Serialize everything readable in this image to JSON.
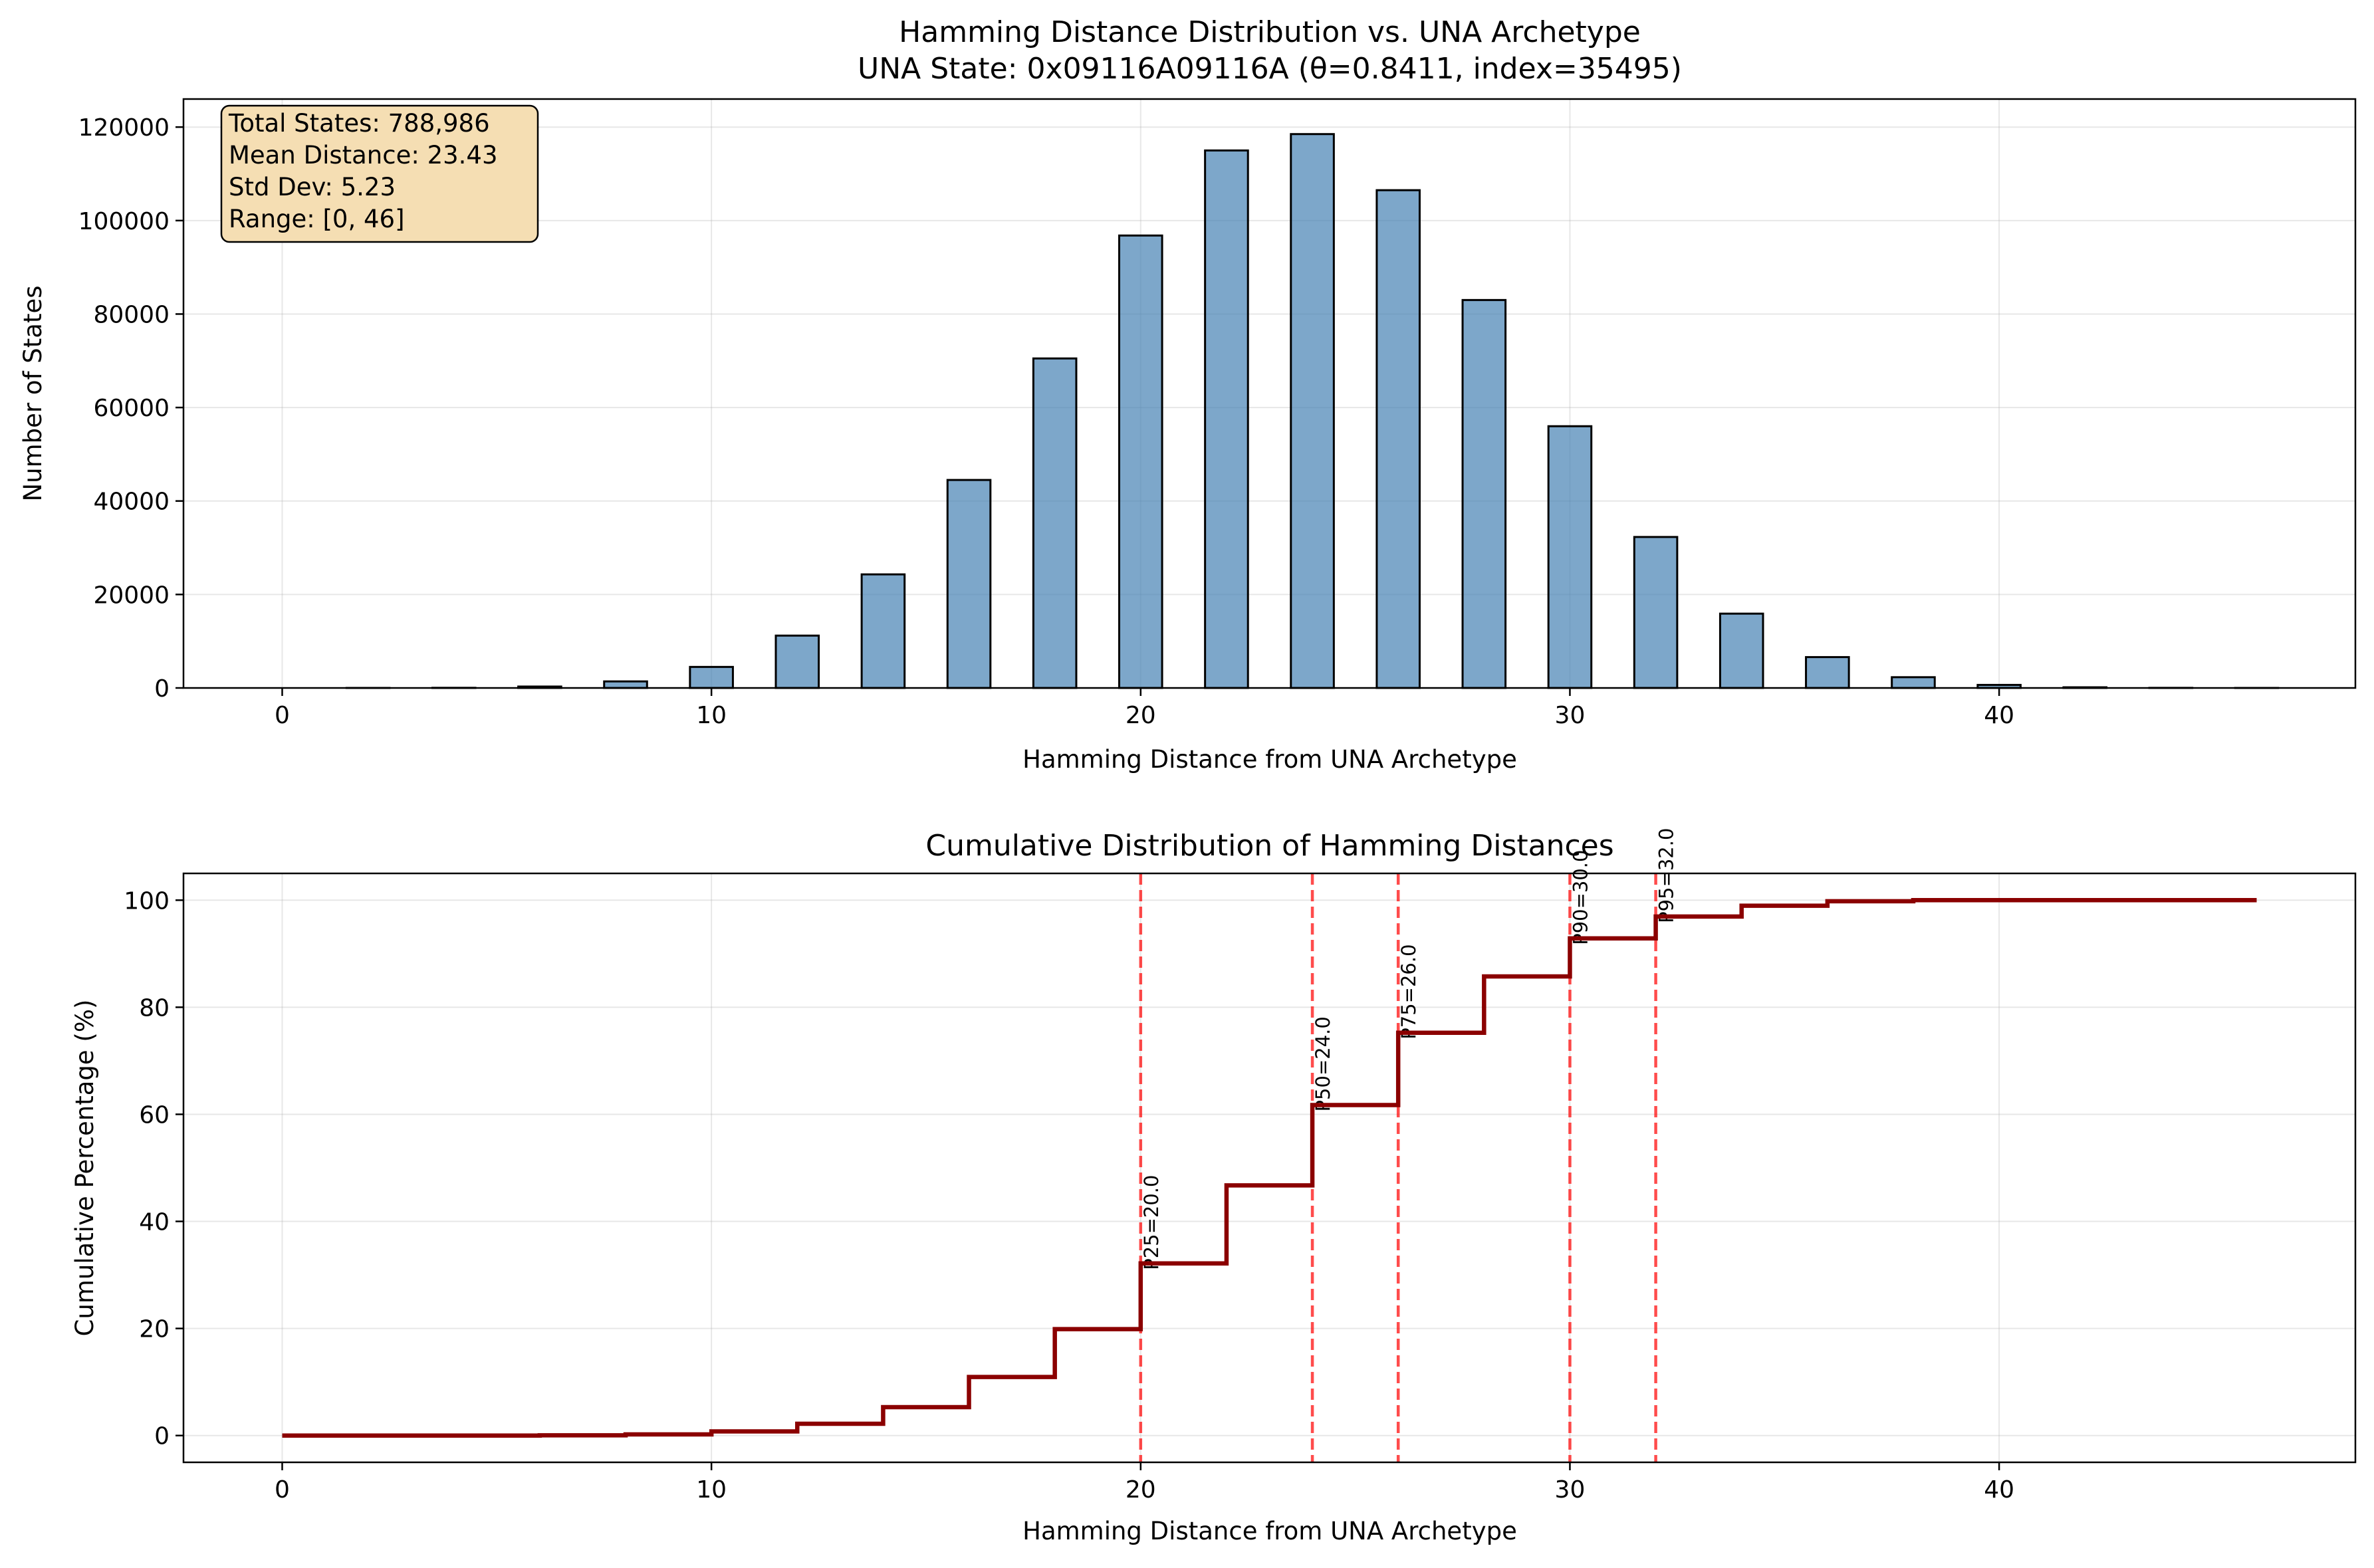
{
  "chart_data": [
    {
      "type": "bar",
      "title": "Hamming Distance Distribution vs. UNA Archetype",
      "subtitle": "UNA State: 0x09116A09116A (θ=0.8411, index=35495)",
      "xlabel": "Hamming Distance from UNA Archetype",
      "ylabel": "Number of States",
      "xlim": [
        -2.3,
        48.3
      ],
      "ylim": [
        0,
        126000
      ],
      "xticks": [
        0,
        10,
        20,
        30,
        40
      ],
      "yticks": [
        0,
        20000,
        40000,
        60000,
        80000,
        100000,
        120000
      ],
      "grid": true,
      "bar_color": "#4682B4",
      "edge_color": "#000000",
      "x": [
        0,
        2,
        4,
        6,
        8,
        10,
        12,
        14,
        16,
        18,
        20,
        22,
        24,
        26,
        28,
        30,
        32,
        34,
        36,
        38,
        40,
        42,
        44,
        46
      ],
      "values": [
        0,
        5,
        30,
        300,
        1400,
        4500,
        11200,
        24300,
        44500,
        70500,
        96800,
        115000,
        118500,
        106500,
        83000,
        56000,
        32300,
        15900,
        6600,
        2300,
        650,
        140,
        20,
        2
      ],
      "stats_box": {
        "lines": [
          "Total States: 788,986",
          "Mean Distance: 23.43",
          "Std Dev: 5.23",
          "Range: [0, 46]"
        ],
        "facecolor": "#F5DEB3",
        "placement": "top-left"
      }
    },
    {
      "type": "line",
      "title": "Cumulative Distribution of Hamming Distances",
      "xlabel": "Hamming Distance from UNA Archetype",
      "ylabel": "Cumulative Percentage (%)",
      "xlim": [
        -2.3,
        48.3
      ],
      "ylim": [
        -5,
        105
      ],
      "xticks": [
        0,
        10,
        20,
        30,
        40
      ],
      "yticks": [
        0,
        20,
        40,
        60,
        80,
        100
      ],
      "grid": true,
      "line_color": "#8B0000",
      "step": "post",
      "x": [
        0,
        2,
        4,
        6,
        8,
        10,
        12,
        14,
        16,
        18,
        20,
        22,
        24,
        26,
        28,
        30,
        32,
        34,
        36,
        38,
        40,
        42,
        44,
        46
      ],
      "y": [
        0.0,
        0.0,
        0.0,
        0.04,
        0.21,
        0.78,
        2.2,
        5.3,
        10.94,
        19.88,
        32.15,
        46.72,
        61.74,
        75.24,
        85.76,
        92.86,
        96.95,
        98.97,
        99.8,
        100.0,
        100.0,
        100.0,
        100.0,
        100.0
      ],
      "percentile_color": "#FF0000",
      "percentiles": [
        {
          "label": "P25=20.0",
          "value": 20
        },
        {
          "label": "P50=24.0",
          "value": 24
        },
        {
          "label": "P75=26.0",
          "value": 26
        },
        {
          "label": "P90=30.0",
          "value": 30
        },
        {
          "label": "P95=32.0",
          "value": 32
        }
      ]
    }
  ]
}
